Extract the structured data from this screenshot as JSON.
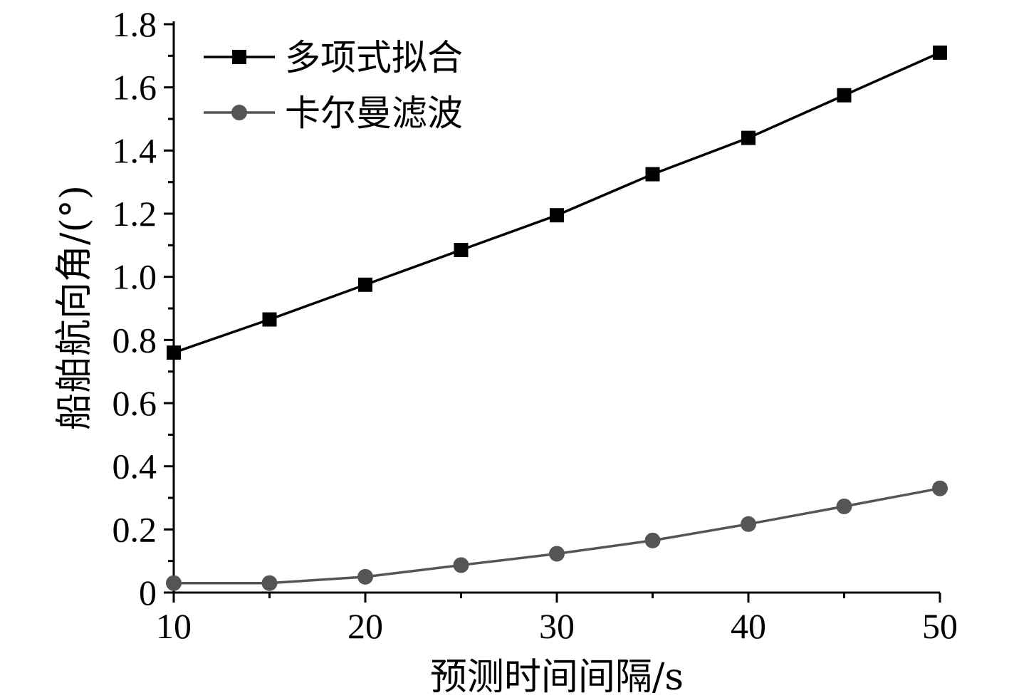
{
  "chart_data": {
    "type": "line",
    "xlabel": "预测时间间隔/s",
    "ylabel": "船舶航向角/(°)",
    "x": [
      10,
      15,
      20,
      25,
      30,
      35,
      40,
      45,
      50
    ],
    "xlim": [
      10,
      50
    ],
    "ylim": [
      0,
      1.8
    ],
    "x_ticks": [
      "10",
      "20",
      "30",
      "40",
      "50"
    ],
    "x_tick_values": [
      10,
      20,
      30,
      40,
      50
    ],
    "y_ticks": [
      "0",
      "0.2",
      "0.4",
      "0.6",
      "0.8",
      "1.0",
      "1.2",
      "1.4",
      "1.6",
      "1.8"
    ],
    "y_tick_values": [
      0,
      0.2,
      0.4,
      0.6,
      0.8,
      1.0,
      1.2,
      1.4,
      1.6,
      1.8
    ],
    "grid": false,
    "legend_position": "top-left",
    "series": [
      {
        "name": "多项式拟合",
        "marker": "square",
        "color": "#000000",
        "values": [
          0.76,
          0.865,
          0.975,
          1.085,
          1.195,
          1.325,
          1.44,
          1.575,
          1.71
        ]
      },
      {
        "name": "卡尔曼滤波",
        "marker": "circle",
        "color": "#555555",
        "values": [
          0.03,
          0.03,
          0.05,
          0.087,
          0.123,
          0.165,
          0.217,
          0.273,
          0.33
        ]
      }
    ]
  }
}
